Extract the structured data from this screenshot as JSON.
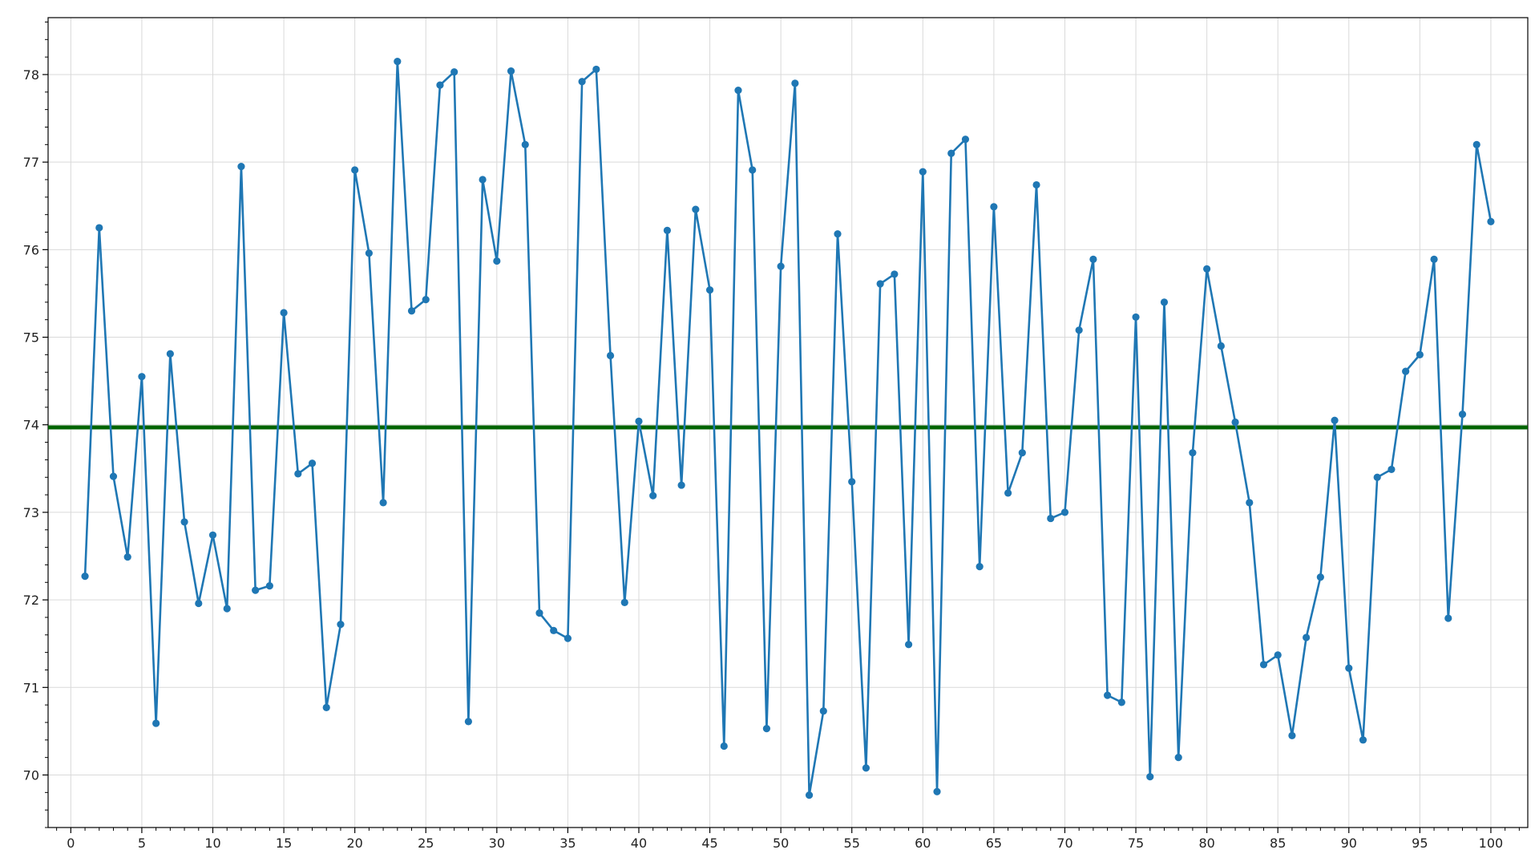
{
  "chart_data": {
    "type": "line",
    "title": "",
    "xlabel": "",
    "ylabel": "",
    "xlim": [
      -1.6,
      102.6
    ],
    "ylim": [
      69.4,
      78.65
    ],
    "x_ticks": [
      0,
      5,
      10,
      15,
      20,
      25,
      30,
      35,
      40,
      45,
      50,
      55,
      60,
      65,
      70,
      75,
      80,
      85,
      90,
      95,
      100
    ],
    "x_tick_labels": [
      "0",
      "5",
      "10",
      "15",
      "20",
      "25",
      "30",
      "35",
      "40",
      "45",
      "50",
      "55",
      "60",
      "65",
      "70",
      "75",
      "80",
      "85",
      "90",
      "95",
      "100"
    ],
    "y_ticks": [
      70,
      71,
      72,
      73,
      74,
      75,
      76,
      77,
      78
    ],
    "y_tick_labels": [
      "70",
      "71",
      "72",
      "73",
      "74",
      "75",
      "76",
      "77",
      "78"
    ],
    "grid": true,
    "series": [
      {
        "color": "#1f77b4",
        "marker": "circle",
        "x": [
          1,
          2,
          3,
          4,
          5,
          6,
          7,
          8,
          9,
          10,
          11,
          12,
          13,
          14,
          15,
          16,
          17,
          18,
          19,
          20,
          21,
          22,
          23,
          24,
          25,
          26,
          27,
          28,
          29,
          30,
          31,
          32,
          33,
          34,
          35,
          36,
          37,
          38,
          39,
          40,
          41,
          42,
          43,
          44,
          45,
          46,
          47,
          48,
          49,
          50,
          51,
          52,
          53,
          54,
          55,
          56,
          57,
          58,
          59,
          60,
          61,
          62,
          63,
          64,
          65,
          66,
          67,
          68,
          69,
          70,
          71,
          72,
          73,
          74,
          75,
          76,
          77,
          78,
          79,
          80,
          81,
          82,
          83,
          84,
          85,
          86,
          87,
          88,
          89,
          90,
          91,
          92,
          93,
          94,
          95,
          96,
          97,
          98,
          99,
          100
        ],
        "values": [
          72.27,
          76.25,
          73.41,
          72.49,
          74.55,
          70.59,
          74.81,
          72.89,
          71.96,
          72.74,
          71.9,
          76.95,
          72.11,
          72.16,
          75.28,
          73.44,
          73.56,
          70.77,
          71.72,
          76.91,
          75.96,
          73.11,
          78.15,
          75.3,
          75.43,
          77.88,
          78.03,
          70.61,
          76.8,
          75.87,
          78.04,
          77.2,
          71.85,
          71.65,
          71.56,
          77.92,
          78.06,
          74.79,
          71.97,
          74.04,
          73.19,
          76.22,
          73.31,
          76.46,
          75.54,
          70.33,
          77.82,
          76.91,
          70.53,
          75.81,
          77.9,
          69.77,
          70.73,
          76.18,
          73.35,
          70.08,
          75.61,
          75.72,
          71.49,
          76.89,
          69.81,
          77.1,
          77.26,
          72.38,
          76.49,
          73.22,
          73.68,
          76.74,
          72.93,
          73.0,
          75.08,
          75.89,
          70.91,
          70.83,
          75.23,
          69.98,
          75.4,
          70.2,
          73.68,
          75.78,
          74.9,
          74.03,
          73.11,
          71.26,
          71.37,
          70.45,
          71.57,
          72.26,
          74.05,
          71.22,
          70.4,
          73.4,
          73.49,
          74.61,
          74.8,
          75.89,
          71.79,
          74.12,
          77.2,
          76.32
        ]
      }
    ],
    "hline": {
      "y": 73.97,
      "color": "#006400"
    }
  }
}
